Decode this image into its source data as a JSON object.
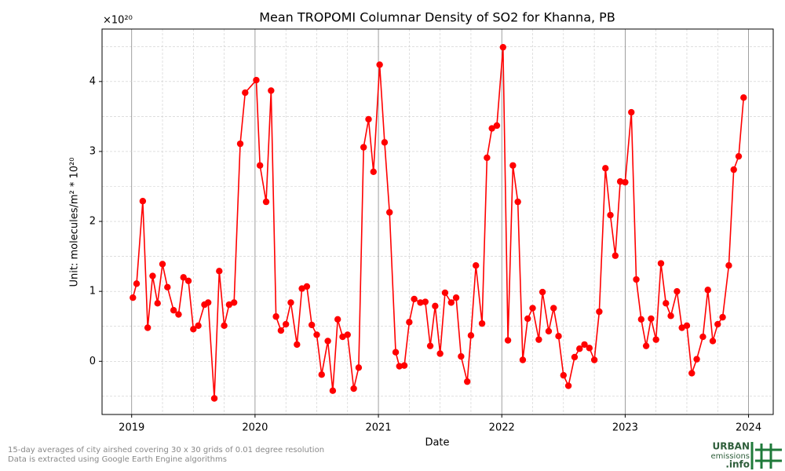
{
  "chart_data": {
    "type": "line",
    "title": "Mean TROPOMI Columnar Density of SO2 for Khanna, PB",
    "x_label": "Date",
    "y_label": "Unit: molecules/m² * 10²⁰",
    "y_offset_label": "×10²⁰",
    "footnote": [
      "15-day averages of city airshed covering 30 x 30 grids of 0.01 degree resolution",
      "Data is extracted using Google Earth Engine algorithms"
    ],
    "logo": [
      "URBAN",
      "emissions",
      ".info"
    ],
    "color": "#ff0000",
    "grid": true,
    "xlim": [
      2018.76,
      2024.2
    ],
    "xticks": [
      2019,
      2020,
      2021,
      2022,
      2023,
      2024
    ],
    "ylim": [
      -0.76,
      4.75
    ],
    "yticks": [
      0,
      1,
      2,
      3,
      4
    ],
    "x": [
      2019.01,
      2019.04,
      2019.09,
      2019.13,
      2019.17,
      2019.21,
      2019.25,
      2019.29,
      2019.34,
      2019.38,
      2019.42,
      2019.46,
      2019.5,
      2019.54,
      2019.59,
      2019.62,
      2019.67,
      2019.71,
      2019.75,
      2019.79,
      2019.83,
      2019.88,
      2019.92,
      2020.01,
      2020.04,
      2020.09,
      2020.13,
      2020.17,
      2020.21,
      2020.25,
      2020.29,
      2020.34,
      2020.38,
      2020.42,
      2020.46,
      2020.5,
      2020.54,
      2020.59,
      2020.63,
      2020.67,
      2020.71,
      2020.75,
      2020.8,
      2020.84,
      2020.88,
      2020.92,
      2020.96,
      2021.01,
      2021.05,
      2021.09,
      2021.14,
      2021.17,
      2021.21,
      2021.25,
      2021.29,
      2021.34,
      2021.38,
      2021.42,
      2021.46,
      2021.5,
      2021.54,
      2021.59,
      2021.63,
      2021.67,
      2021.72,
      2021.75,
      2021.79,
      2021.84,
      2021.88,
      2021.92,
      2021.96,
      2022.01,
      2022.05,
      2022.09,
      2022.13,
      2022.17,
      2022.21,
      2022.25,
      2022.3,
      2022.33,
      2022.38,
      2022.42,
      2022.46,
      2022.5,
      2022.54,
      2022.59,
      2022.63,
      2022.67,
      2022.71,
      2022.75,
      2022.79,
      2022.84,
      2022.88,
      2022.92,
      2022.96,
      2023.0,
      2023.05,
      2023.09,
      2023.13,
      2023.17,
      2023.21,
      2023.25,
      2023.29,
      2023.33,
      2023.37,
      2023.42,
      2023.46,
      2023.5,
      2023.54,
      2023.58,
      2023.63,
      2023.67,
      2023.71,
      2023.75,
      2023.79,
      2023.84,
      2023.88,
      2023.92,
      2023.96
    ],
    "values": [
      0.91,
      1.11,
      2.29,
      0.48,
      1.22,
      0.83,
      1.39,
      1.06,
      0.73,
      0.67,
      1.2,
      1.15,
      0.46,
      0.51,
      0.81,
      0.84,
      -0.53,
      1.29,
      0.51,
      0.81,
      0.84,
      3.11,
      3.84,
      4.02,
      2.8,
      2.28,
      3.87,
      0.64,
      0.44,
      0.53,
      0.84,
      0.24,
      1.04,
      1.07,
      0.52,
      0.38,
      -0.19,
      0.29,
      -0.42,
      0.6,
      0.35,
      0.38,
      -0.39,
      -0.09,
      3.06,
      3.46,
      2.71,
      4.24,
      3.13,
      2.13,
      0.13,
      -0.07,
      -0.06,
      0.56,
      0.89,
      0.84,
      0.85,
      0.22,
      0.79,
      0.11,
      0.98,
      0.84,
      0.91,
      0.07,
      -0.29,
      0.37,
      1.37,
      0.54,
      2.91,
      3.33,
      3.37,
      4.49,
      0.3,
      2.8,
      2.28,
      0.02,
      0.61,
      0.76,
      0.31,
      0.99,
      0.43,
      0.76,
      0.36,
      -0.2,
      -0.35,
      0.06,
      0.18,
      0.24,
      0.19,
      0.02,
      0.71,
      2.76,
      2.09,
      1.51,
      2.57,
      2.56,
      3.56,
      1.17,
      0.6,
      0.22,
      0.61,
      0.31,
      1.4,
      0.83,
      0.65,
      1.0,
      0.48,
      0.51,
      -0.17,
      0.03,
      0.35,
      1.02,
      0.29,
      0.53,
      0.63,
      1.37,
      2.74,
      2.93,
      3.77
    ]
  }
}
